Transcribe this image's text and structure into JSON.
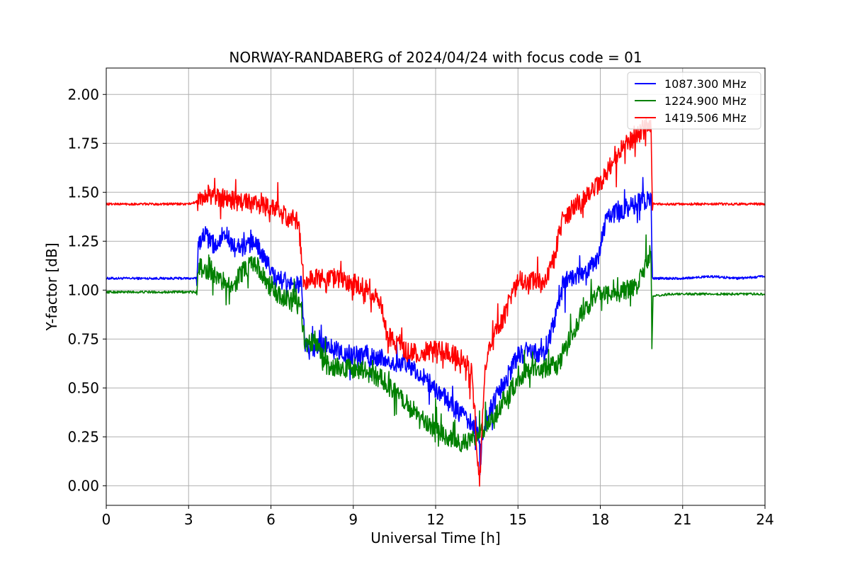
{
  "chart_data": {
    "type": "line",
    "title": "NORWAY-RANDABERG of 2024/04/24 with focus code = 01",
    "xlabel": "Universal Time [h]",
    "ylabel": "Y-factor [dB]",
    "xlim": [
      0,
      24
    ],
    "ylim": [
      -0.1,
      2.135
    ],
    "xticks": [
      0,
      3,
      6,
      9,
      12,
      15,
      18,
      21,
      24
    ],
    "yticks": [
      0.0,
      0.25,
      0.5,
      0.75,
      1.0,
      1.25,
      1.5,
      1.75,
      2.0
    ],
    "grid": true,
    "legend_position": "top-right",
    "series": [
      {
        "name": "1087.300 MHz",
        "color": "#0000ff",
        "points": [
          [
            0,
            1.06
          ],
          [
            1.5,
            1.06
          ],
          [
            3.0,
            1.06
          ],
          [
            3.3,
            1.06
          ],
          [
            3.35,
            1.25
          ],
          [
            3.6,
            1.28
          ],
          [
            4.0,
            1.22
          ],
          [
            4.3,
            1.3
          ],
          [
            4.6,
            1.22
          ],
          [
            5.0,
            1.22
          ],
          [
            5.4,
            1.25
          ],
          [
            5.8,
            1.15
          ],
          [
            6.2,
            1.05
          ],
          [
            6.6,
            1.05
          ],
          [
            7.1,
            1.03
          ],
          [
            7.25,
            0.72
          ],
          [
            7.6,
            0.7
          ],
          [
            8.0,
            0.72
          ],
          [
            8.5,
            0.68
          ],
          [
            9.0,
            0.67
          ],
          [
            9.5,
            0.67
          ],
          [
            10.0,
            0.65
          ],
          [
            10.5,
            0.63
          ],
          [
            11.0,
            0.62
          ],
          [
            11.5,
            0.56
          ],
          [
            12.0,
            0.5
          ],
          [
            12.5,
            0.42
          ],
          [
            13.0,
            0.36
          ],
          [
            13.5,
            0.3
          ],
          [
            13.6,
            0.15
          ],
          [
            13.8,
            0.32
          ],
          [
            14.2,
            0.45
          ],
          [
            14.6,
            0.55
          ],
          [
            15.0,
            0.67
          ],
          [
            15.5,
            0.68
          ],
          [
            16.0,
            0.68
          ],
          [
            16.4,
            0.88
          ],
          [
            16.7,
            1.05
          ],
          [
            17.0,
            1.07
          ],
          [
            17.5,
            1.1
          ],
          [
            17.9,
            1.15
          ],
          [
            18.2,
            1.35
          ],
          [
            18.6,
            1.4
          ],
          [
            19.0,
            1.42
          ],
          [
            19.5,
            1.45
          ],
          [
            19.85,
            1.46
          ],
          [
            19.9,
            1.06
          ],
          [
            20.5,
            1.06
          ],
          [
            21.0,
            1.06
          ],
          [
            22.0,
            1.07
          ],
          [
            23.0,
            1.06
          ],
          [
            24.0,
            1.07
          ]
        ]
      },
      {
        "name": "1224.900 MHz",
        "color": "#008000",
        "points": [
          [
            0,
            0.99
          ],
          [
            1.5,
            0.99
          ],
          [
            3.0,
            0.99
          ],
          [
            3.3,
            0.99
          ],
          [
            3.35,
            1.12
          ],
          [
            3.8,
            1.1
          ],
          [
            4.2,
            1.05
          ],
          [
            4.6,
            1.02
          ],
          [
            5.0,
            1.1
          ],
          [
            5.4,
            1.15
          ],
          [
            5.8,
            1.05
          ],
          [
            6.2,
            0.98
          ],
          [
            6.6,
            0.95
          ],
          [
            7.1,
            0.92
          ],
          [
            7.25,
            0.7
          ],
          [
            7.6,
            0.75
          ],
          [
            8.0,
            0.62
          ],
          [
            8.5,
            0.6
          ],
          [
            9.0,
            0.6
          ],
          [
            9.5,
            0.58
          ],
          [
            10.0,
            0.55
          ],
          [
            10.5,
            0.48
          ],
          [
            11.0,
            0.4
          ],
          [
            11.5,
            0.33
          ],
          [
            12.0,
            0.28
          ],
          [
            12.5,
            0.24
          ],
          [
            13.0,
            0.22
          ],
          [
            13.5,
            0.25
          ],
          [
            13.7,
            0.28
          ],
          [
            14.0,
            0.33
          ],
          [
            14.5,
            0.42
          ],
          [
            15.0,
            0.55
          ],
          [
            15.5,
            0.6
          ],
          [
            16.0,
            0.6
          ],
          [
            16.5,
            0.62
          ],
          [
            16.9,
            0.75
          ],
          [
            17.3,
            0.88
          ],
          [
            17.8,
            0.96
          ],
          [
            18.2,
            0.98
          ],
          [
            18.8,
            0.99
          ],
          [
            19.3,
            1.02
          ],
          [
            19.6,
            1.1
          ],
          [
            19.85,
            1.2
          ],
          [
            19.88,
            0.66
          ],
          [
            19.92,
            0.97
          ],
          [
            20.5,
            0.98
          ],
          [
            21.0,
            0.98
          ],
          [
            22.0,
            0.98
          ],
          [
            23.0,
            0.98
          ],
          [
            24.0,
            0.98
          ]
        ]
      },
      {
        "name": "1419.506 MHz",
        "color": "#ff0000",
        "points": [
          [
            0,
            1.44
          ],
          [
            1.5,
            1.44
          ],
          [
            3.0,
            1.44
          ],
          [
            3.3,
            1.45
          ],
          [
            3.6,
            1.49
          ],
          [
            4.0,
            1.48
          ],
          [
            4.5,
            1.46
          ],
          [
            5.0,
            1.45
          ],
          [
            5.5,
            1.44
          ],
          [
            6.0,
            1.42
          ],
          [
            6.5,
            1.38
          ],
          [
            7.0,
            1.35
          ],
          [
            7.2,
            1.05
          ],
          [
            7.6,
            1.06
          ],
          [
            8.0,
            1.06
          ],
          [
            8.5,
            1.05
          ],
          [
            9.0,
            1.04
          ],
          [
            9.5,
            1.0
          ],
          [
            10.0,
            0.95
          ],
          [
            10.2,
            0.78
          ],
          [
            10.6,
            0.72
          ],
          [
            11.0,
            0.68
          ],
          [
            11.5,
            0.68
          ],
          [
            12.0,
            0.7
          ],
          [
            12.5,
            0.68
          ],
          [
            13.0,
            0.64
          ],
          [
            13.3,
            0.6
          ],
          [
            13.6,
            0.0
          ],
          [
            13.8,
            0.62
          ],
          [
            14.2,
            0.78
          ],
          [
            14.6,
            0.9
          ],
          [
            15.0,
            1.05
          ],
          [
            15.5,
            1.05
          ],
          [
            16.0,
            1.05
          ],
          [
            16.3,
            1.15
          ],
          [
            16.6,
            1.35
          ],
          [
            17.0,
            1.42
          ],
          [
            17.5,
            1.48
          ],
          [
            18.0,
            1.55
          ],
          [
            18.3,
            1.62
          ],
          [
            18.6,
            1.7
          ],
          [
            19.0,
            1.75
          ],
          [
            19.4,
            1.8
          ],
          [
            19.85,
            1.85
          ],
          [
            19.9,
            1.44
          ],
          [
            20.5,
            1.44
          ],
          [
            21.0,
            1.44
          ],
          [
            22.0,
            1.44
          ],
          [
            23.0,
            1.44
          ],
          [
            24.0,
            1.44
          ]
        ]
      }
    ]
  }
}
